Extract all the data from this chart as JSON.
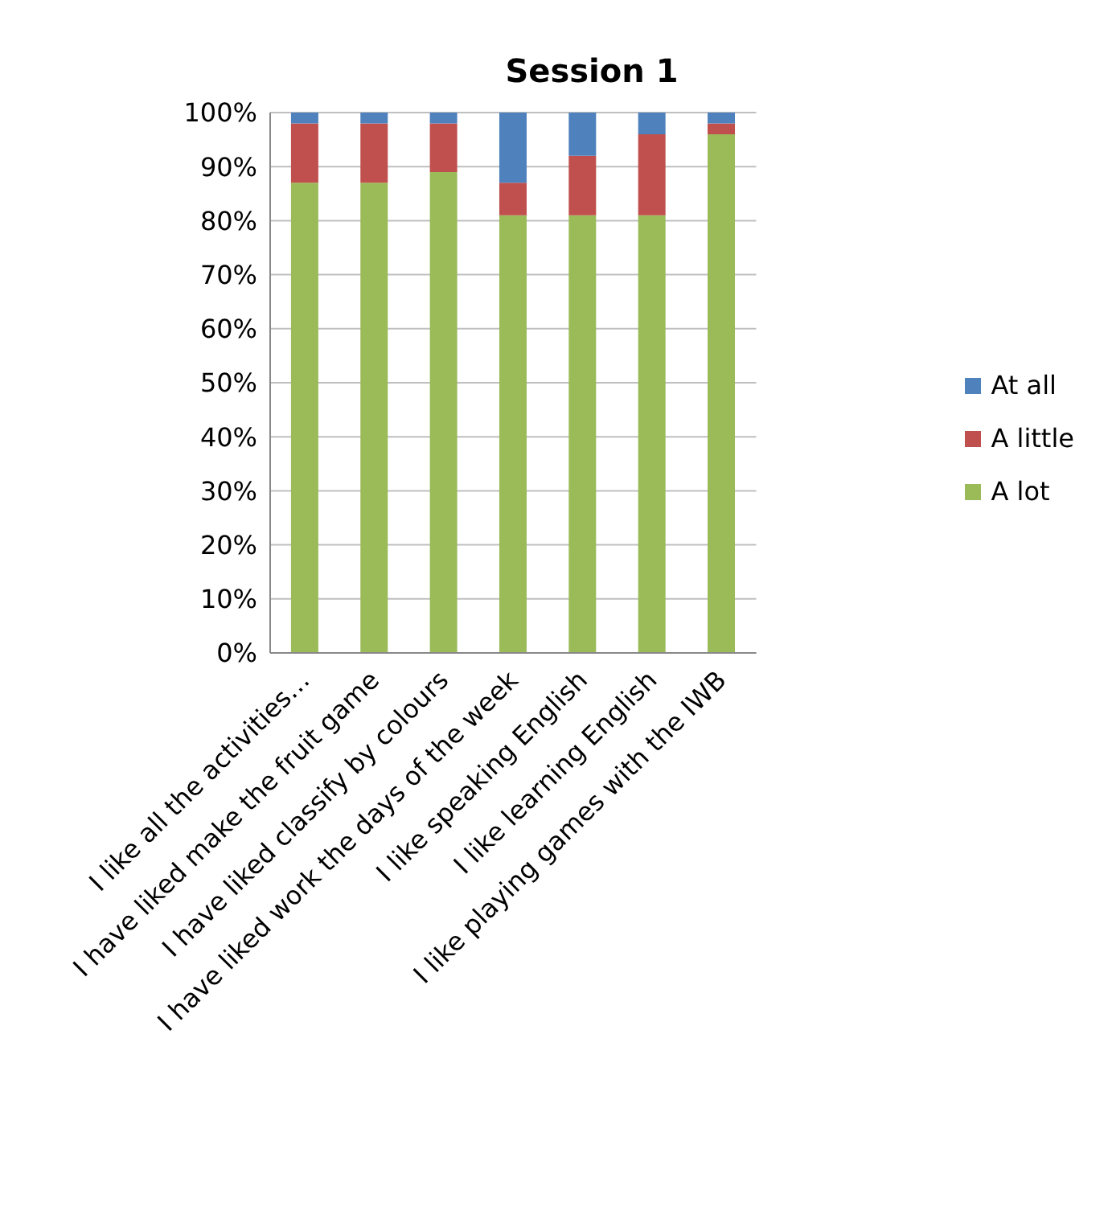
{
  "chart_data": {
    "type": "bar",
    "title": "Session 1",
    "stacked": true,
    "categories": [
      "I like all the activities…",
      "I have liked make the fruit game",
      "I have liked classify by colours",
      "I have liked work the days of the week",
      "I like speaking English",
      "I like learning English",
      "I like playing games with the IWB"
    ],
    "series": [
      {
        "name": "A lot",
        "color": "#9bbb59",
        "values": [
          87,
          87,
          89,
          81,
          81,
          81,
          96
        ]
      },
      {
        "name": "A little",
        "color": "#c0504d",
        "values": [
          11,
          11,
          9,
          6,
          11,
          15,
          2
        ]
      },
      {
        "name": "At all",
        "color": "#4f81bd",
        "values": [
          2,
          2,
          2,
          13,
          8,
          4,
          2
        ]
      }
    ],
    "ylim": [
      0,
      100
    ],
    "yticks": [
      {
        "value": 0,
        "label": "0%"
      },
      {
        "value": 10,
        "label": "10%"
      },
      {
        "value": 20,
        "label": "20%"
      },
      {
        "value": 30,
        "label": "30%"
      },
      {
        "value": 40,
        "label": "40%"
      },
      {
        "value": 50,
        "label": "50%"
      },
      {
        "value": 60,
        "label": "60%"
      },
      {
        "value": 70,
        "label": "70%"
      },
      {
        "value": 80,
        "label": "80%"
      },
      {
        "value": 90,
        "label": "90%"
      },
      {
        "value": 100,
        "label": "100%"
      }
    ],
    "grid": "y",
    "legend": "right"
  }
}
